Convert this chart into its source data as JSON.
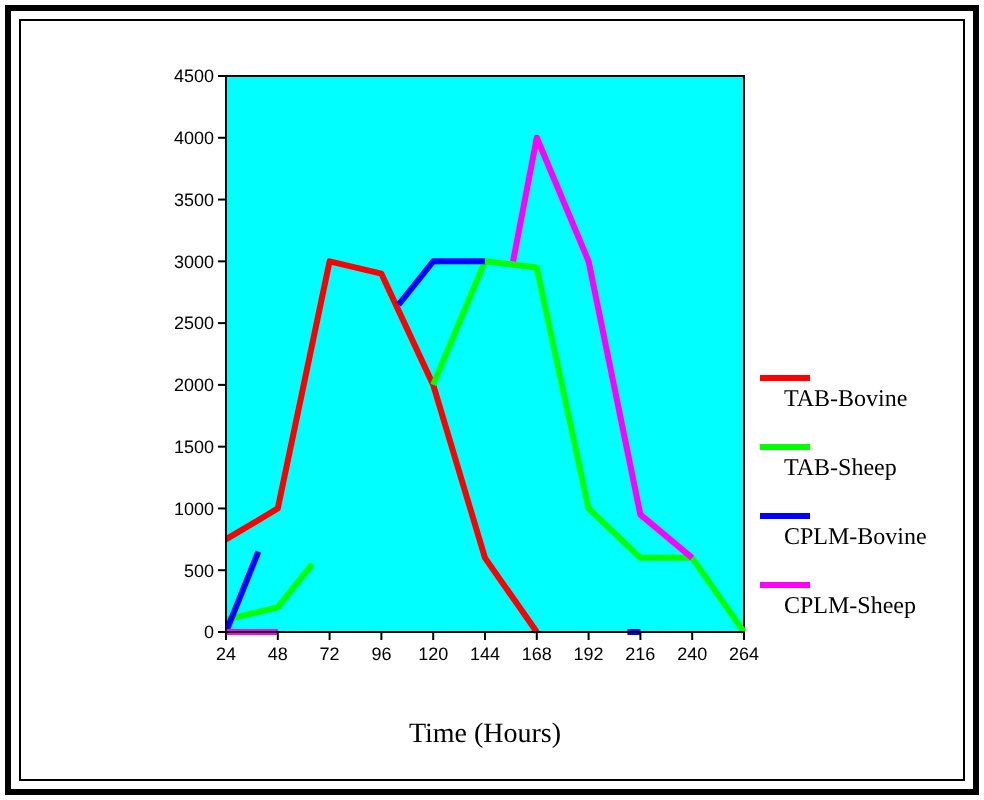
{
  "chart_data": {
    "type": "line",
    "xlabel": "Time (Hours)",
    "xlim": [
      24,
      264
    ],
    "xticks": [
      24,
      48,
      72,
      96,
      120,
      144,
      168,
      192,
      216,
      240,
      264
    ],
    "ylim": [
      0,
      4500
    ],
    "yticks": [
      0,
      500,
      1000,
      1500,
      2000,
      2500,
      3000,
      3500,
      4000,
      4500
    ],
    "grid": false,
    "legend": "right",
    "marker": "none",
    "line_style": "solid",
    "series": [
      {
        "name": "TAB-Bovine",
        "color": "#ff0000",
        "x": [
          24,
          48,
          72,
          96,
          120,
          144,
          168
        ],
        "values": [
          750,
          1000,
          3000,
          2900,
          2000,
          600,
          0
        ]
      },
      {
        "name": "TAB-Sheep",
        "color": "#00ff00",
        "x": [
          24,
          48,
          64,
          65,
          120,
          144,
          168,
          192,
          216,
          240,
          264
        ],
        "values": [
          100,
          200,
          550,
          null,
          2000,
          3000,
          2950,
          1000,
          600,
          600,
          0
        ]
      },
      {
        "name": "CPLM-Bovine",
        "color": "#0000ff",
        "x": [
          24,
          39,
          40,
          104,
          120,
          144,
          145,
          210,
          216
        ],
        "values": [
          0,
          650,
          null,
          2650,
          3000,
          3000,
          null,
          0,
          0
        ]
      },
      {
        "name": "CPLM-Sheep",
        "color": "#ff00ff",
        "x": [
          24,
          48,
          49,
          157,
          168,
          192,
          216,
          240
        ],
        "values": [
          0,
          0,
          null,
          3000,
          4000,
          3000,
          950,
          600
        ]
      }
    ]
  }
}
